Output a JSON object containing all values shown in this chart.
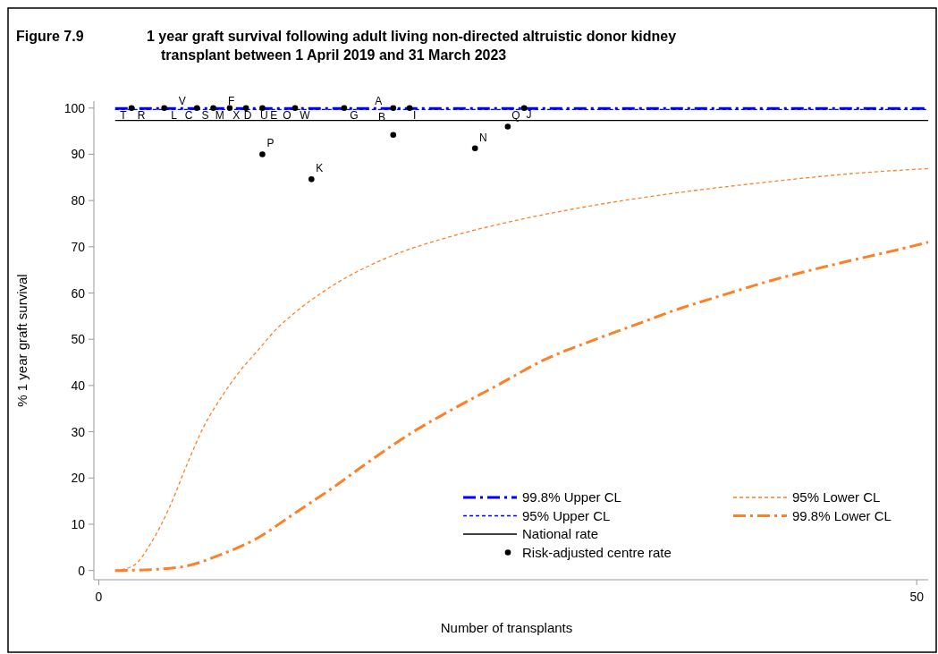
{
  "chart_data": {
    "type": "line",
    "title": "1 year graft survival following adult living non-directed altruistic donor kidney transplant between 1 April 2019 and 31 March 2023",
    "xlabel": "Number of transplants",
    "ylabel": "% 1 year graft survival",
    "xlim": [
      -0.3,
      50.7
    ],
    "ylim": [
      -2,
      101.5
    ],
    "xticks": [
      0,
      50
    ],
    "yticks": [
      0,
      10,
      20,
      30,
      40,
      50,
      60,
      70,
      80,
      90,
      100
    ],
    "grid": false,
    "legend": "bottom right",
    "series": [
      {
        "name": "99.8% Upper CL",
        "color": "#0000ff",
        "line_style": "dashed",
        "x": [
          1,
          50.7
        ],
        "values": [
          99.9,
          99.9
        ]
      },
      {
        "name": "95% Upper CL",
        "color": "#0000ff",
        "line_style": "dotted",
        "x": [
          1,
          50.7
        ],
        "values": [
          99.7,
          99.7
        ]
      },
      {
        "name": "National rate",
        "color": "#000000",
        "line_style": "solid",
        "x": [
          1,
          50.7
        ],
        "values": [
          97.3,
          97.3
        ]
      },
      {
        "name": "Risk-adjusted centre rate",
        "type": "scatter",
        "marker": "circle",
        "color": "#000000",
        "x": [
          2,
          4,
          6,
          7,
          8,
          9,
          10,
          12,
          15,
          18,
          19,
          26,
          10,
          13,
          18,
          23,
          25
        ],
        "values": [
          100,
          100,
          100,
          100,
          100,
          100,
          100,
          100,
          100,
          100,
          100,
          100,
          90,
          84.6,
          94.2,
          91.3,
          96
        ]
      },
      {
        "name": "95% Lower CL",
        "color": "#ff7f27",
        "line_style": "dotted",
        "x": [
          1,
          2.1,
          3.2,
          4.3,
          5.4,
          6.4,
          7.5,
          8.6,
          9.7,
          10.8,
          11.9,
          13.6,
          15.2,
          17.4,
          21.7,
          25,
          30,
          35.4,
          40.9,
          46.3,
          50.7
        ],
        "values": [
          0,
          1,
          6,
          13.5,
          23,
          31,
          37.5,
          43,
          47.5,
          52,
          55.5,
          60,
          63.5,
          67.3,
          72.4,
          75.3,
          78.8,
          81.7,
          84,
          85.9,
          86.9
        ]
      },
      {
        "name": "99.8% Lower CL",
        "color": "#ff7f27",
        "line_style": "dashed",
        "x": [
          1,
          3.2,
          5.4,
          7.5,
          9.7,
          11.9,
          14.1,
          16.9,
          19,
          21.7,
          24.5,
          27.2,
          30,
          32.7,
          35.4,
          38.1,
          40.9,
          43.6,
          46.3,
          49,
          50.7
        ],
        "values": [
          0,
          0.2,
          1,
          3.5,
          7,
          12.2,
          17.4,
          24.5,
          29.5,
          35,
          40.3,
          45.5,
          49.5,
          53,
          56.5,
          59.5,
          62.5,
          65,
          67.3,
          69.5,
          71
        ]
      }
    ],
    "annotations": [
      "Figure 7.9",
      {
        "text": "T",
        "x": 1.5,
        "y": 97.7
      },
      {
        "text": "R",
        "x": 2.6,
        "y": 97.7
      },
      {
        "text": "L",
        "x": 4.6,
        "y": 97.7
      },
      {
        "text": "C",
        "x": 5.5,
        "y": 97.7
      },
      {
        "text": "S",
        "x": 6.5,
        "y": 97.7
      },
      {
        "text": "M",
        "x": 7.4,
        "y": 97.7
      },
      {
        "text": "X",
        "x": 8.4,
        "y": 97.7
      },
      {
        "text": "D",
        "x": 9.1,
        "y": 97.7
      },
      {
        "text": "U",
        "x": 10.1,
        "y": 97.7
      },
      {
        "text": "E",
        "x": 10.7,
        "y": 97.7
      },
      {
        "text": "O",
        "x": 11.5,
        "y": 97.7
      },
      {
        "text": "W",
        "x": 12.6,
        "y": 97.7
      },
      {
        "text": "V",
        "x": 5.1,
        "y": 100.8
      },
      {
        "text": "F",
        "x": 8.1,
        "y": 100.8
      },
      {
        "text": "G",
        "x": 15.6,
        "y": 97.7
      },
      {
        "text": "A",
        "x": 17.1,
        "y": 100.8
      },
      {
        "text": "B",
        "x": 17.3,
        "y": 97.3
      },
      {
        "text": "I",
        "x": 19.3,
        "y": 97.7
      },
      {
        "text": "Q",
        "x": 25,
        "y": 96
      },
      {
        "text": "J",
        "x": 26.3,
        "y": 97.9
      },
      {
        "text": "P",
        "x": 10,
        "y": 90
      },
      {
        "text": "K",
        "x": 13,
        "y": 84.6
      },
      {
        "text": "N",
        "x": 23,
        "y": 91.3
      }
    ]
  }
}
